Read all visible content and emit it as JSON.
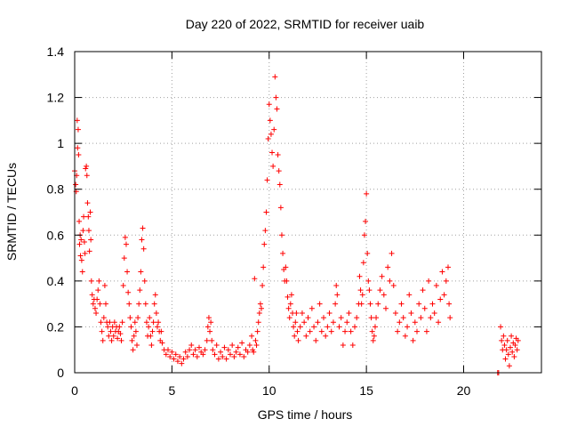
{
  "chart_data": {
    "type": "scatter",
    "title": "Day 220 of 2022, SRMTID for receiver uaib",
    "xlabel": "GPS time / hours",
    "ylabel": "SRMTID / TECUs",
    "xlim": [
      0,
      24
    ],
    "ylim": [
      0,
      1.4
    ],
    "xticks": [
      0,
      5,
      10,
      15,
      20
    ],
    "xtick_labels": [
      "0",
      "5",
      "10",
      "15",
      "20"
    ],
    "yticks": [
      0,
      0.2,
      0.4,
      0.6,
      0.8,
      1.0,
      1.2,
      1.4
    ],
    "ytick_labels": [
      "0",
      "0.2",
      "0.4",
      "0.6",
      "0.8",
      "1",
      "1.2",
      "1.4"
    ],
    "grid": true,
    "marker": "+",
    "color": "#ff0000",
    "series": [
      {
        "name": "SRMTID",
        "points": [
          [
            0.0,
            0.88
          ],
          [
            0.05,
            0.82
          ],
          [
            0.08,
            0.79
          ],
          [
            0.1,
            0.86
          ],
          [
            0.13,
            1.1
          ],
          [
            0.15,
            0.98
          ],
          [
            0.18,
            1.06
          ],
          [
            0.2,
            0.95
          ],
          [
            0.23,
            0.66
          ],
          [
            0.25,
            0.56
          ],
          [
            0.28,
            0.6
          ],
          [
            0.3,
            0.51
          ],
          [
            0.33,
            0.58
          ],
          [
            0.36,
            0.49
          ],
          [
            0.4,
            0.44
          ],
          [
            0.43,
            0.62
          ],
          [
            0.46,
            0.68
          ],
          [
            0.5,
            0.57
          ],
          [
            0.53,
            0.52
          ],
          [
            0.56,
            0.89
          ],
          [
            0.6,
            0.9
          ],
          [
            0.63,
            0.86
          ],
          [
            0.66,
            0.74
          ],
          [
            0.7,
            0.68
          ],
          [
            0.73,
            0.62
          ],
          [
            0.76,
            0.53
          ],
          [
            0.8,
            0.7
          ],
          [
            0.83,
            0.58
          ],
          [
            0.86,
            0.4
          ],
          [
            0.9,
            0.34
          ],
          [
            0.95,
            0.3
          ],
          [
            1.0,
            0.32
          ],
          [
            1.05,
            0.28
          ],
          [
            1.1,
            0.26
          ],
          [
            1.15,
            0.32
          ],
          [
            1.2,
            0.36
          ],
          [
            1.25,
            0.4
          ],
          [
            1.3,
            0.3
          ],
          [
            1.35,
            0.22
          ],
          [
            1.4,
            0.18
          ],
          [
            1.45,
            0.14
          ],
          [
            1.5,
            0.24
          ],
          [
            1.55,
            0.38
          ],
          [
            1.6,
            0.3
          ],
          [
            1.65,
            0.22
          ],
          [
            1.7,
            0.2
          ],
          [
            1.75,
            0.16
          ],
          [
            1.8,
            0.22
          ],
          [
            1.85,
            0.18
          ],
          [
            1.9,
            0.14
          ],
          [
            1.95,
            0.2
          ],
          [
            2.0,
            0.16
          ],
          [
            2.05,
            0.22
          ],
          [
            2.1,
            0.18
          ],
          [
            2.15,
            0.2
          ],
          [
            2.2,
            0.15
          ],
          [
            2.25,
            0.18
          ],
          [
            2.3,
            0.2
          ],
          [
            2.35,
            0.17
          ],
          [
            2.4,
            0.14
          ],
          [
            2.45,
            0.22
          ],
          [
            2.5,
            0.38
          ],
          [
            2.55,
            0.5
          ],
          [
            2.6,
            0.59
          ],
          [
            2.65,
            0.56
          ],
          [
            2.7,
            0.44
          ],
          [
            2.75,
            0.35
          ],
          [
            2.8,
            0.3
          ],
          [
            2.85,
            0.24
          ],
          [
            2.9,
            0.2
          ],
          [
            2.95,
            0.14
          ],
          [
            3.0,
            0.1
          ],
          [
            3.05,
            0.16
          ],
          [
            3.1,
            0.22
          ],
          [
            3.15,
            0.18
          ],
          [
            3.2,
            0.12
          ],
          [
            3.25,
            0.24
          ],
          [
            3.3,
            0.3
          ],
          [
            3.35,
            0.36
          ],
          [
            3.4,
            0.44
          ],
          [
            3.45,
            0.58
          ],
          [
            3.5,
            0.63
          ],
          [
            3.55,
            0.54
          ],
          [
            3.6,
            0.4
          ],
          [
            3.65,
            0.3
          ],
          [
            3.7,
            0.22
          ],
          [
            3.75,
            0.16
          ],
          [
            3.8,
            0.2
          ],
          [
            3.85,
            0.24
          ],
          [
            3.9,
            0.16
          ],
          [
            3.95,
            0.12
          ],
          [
            4.0,
            0.18
          ],
          [
            4.05,
            0.22
          ],
          [
            4.1,
            0.3
          ],
          [
            4.15,
            0.34
          ],
          [
            4.2,
            0.26
          ],
          [
            4.25,
            0.2
          ],
          [
            4.3,
            0.22
          ],
          [
            4.35,
            0.18
          ],
          [
            4.4,
            0.14
          ],
          [
            4.45,
            0.18
          ],
          [
            4.5,
            0.13
          ],
          [
            4.6,
            0.1
          ],
          [
            4.7,
            0.08
          ],
          [
            4.8,
            0.1
          ],
          [
            4.9,
            0.07
          ],
          [
            5.0,
            0.09
          ],
          [
            5.1,
            0.06
          ],
          [
            5.2,
            0.08
          ],
          [
            5.3,
            0.05
          ],
          [
            5.4,
            0.07
          ],
          [
            5.5,
            0.04
          ],
          [
            5.6,
            0.06
          ],
          [
            5.7,
            0.09
          ],
          [
            5.8,
            0.07
          ],
          [
            5.9,
            0.1
          ],
          [
            6.0,
            0.12
          ],
          [
            6.1,
            0.08
          ],
          [
            6.2,
            0.1
          ],
          [
            6.3,
            0.07
          ],
          [
            6.4,
            0.11
          ],
          [
            6.5,
            0.09
          ],
          [
            6.6,
            0.08
          ],
          [
            6.7,
            0.1
          ],
          [
            6.8,
            0.14
          ],
          [
            6.85,
            0.2
          ],
          [
            6.9,
            0.24
          ],
          [
            6.95,
            0.18
          ],
          [
            7.0,
            0.22
          ],
          [
            7.05,
            0.14
          ],
          [
            7.1,
            0.1
          ],
          [
            7.2,
            0.08
          ],
          [
            7.3,
            0.12
          ],
          [
            7.4,
            0.06
          ],
          [
            7.5,
            0.09
          ],
          [
            7.6,
            0.07
          ],
          [
            7.7,
            0.11
          ],
          [
            7.8,
            0.06
          ],
          [
            7.9,
            0.1
          ],
          [
            8.0,
            0.08
          ],
          [
            8.1,
            0.12
          ],
          [
            8.2,
            0.07
          ],
          [
            8.3,
            0.09
          ],
          [
            8.4,
            0.11
          ],
          [
            8.5,
            0.08
          ],
          [
            8.6,
            0.13
          ],
          [
            8.7,
            0.07
          ],
          [
            8.8,
            0.1
          ],
          [
            8.9,
            0.09
          ],
          [
            9.0,
            0.12
          ],
          [
            9.1,
            0.16
          ],
          [
            9.15,
            0.1
          ],
          [
            9.2,
            0.09
          ],
          [
            9.25,
            0.41
          ],
          [
            9.3,
            0.14
          ],
          [
            9.35,
            0.12
          ],
          [
            9.4,
            0.18
          ],
          [
            9.45,
            0.22
          ],
          [
            9.5,
            0.26
          ],
          [
            9.55,
            0.3
          ],
          [
            9.6,
            0.28
          ],
          [
            9.65,
            0.38
          ],
          [
            9.7,
            0.46
          ],
          [
            9.75,
            0.56
          ],
          [
            9.8,
            0.62
          ],
          [
            9.85,
            0.7
          ],
          [
            9.9,
            0.84
          ],
          [
            9.95,
            1.02
          ],
          [
            10.0,
            1.17
          ],
          [
            10.05,
            1.1
          ],
          [
            10.1,
            1.04
          ],
          [
            10.15,
            0.96
          ],
          [
            10.2,
            0.9
          ],
          [
            10.25,
            1.06
          ],
          [
            10.3,
            1.29
          ],
          [
            10.35,
            1.2
          ],
          [
            10.4,
            1.15
          ],
          [
            10.45,
            0.95
          ],
          [
            10.5,
            0.88
          ],
          [
            10.55,
            0.82
          ],
          [
            10.6,
            0.72
          ],
          [
            10.65,
            0.6
          ],
          [
            10.7,
            0.52
          ],
          [
            10.75,
            0.45
          ],
          [
            10.8,
            0.4
          ],
          [
            10.85,
            0.46
          ],
          [
            10.9,
            0.4
          ],
          [
            10.95,
            0.33
          ],
          [
            11.0,
            0.28
          ],
          [
            11.05,
            0.24
          ],
          [
            11.1,
            0.3
          ],
          [
            11.15,
            0.34
          ],
          [
            11.2,
            0.26
          ],
          [
            11.25,
            0.2
          ],
          [
            11.3,
            0.16
          ],
          [
            11.35,
            0.22
          ],
          [
            11.4,
            0.26
          ],
          [
            11.45,
            0.18
          ],
          [
            11.5,
            0.14
          ],
          [
            11.6,
            0.2
          ],
          [
            11.7,
            0.26
          ],
          [
            11.8,
            0.22
          ],
          [
            11.9,
            0.16
          ],
          [
            12.0,
            0.24
          ],
          [
            12.1,
            0.18
          ],
          [
            12.2,
            0.28
          ],
          [
            12.3,
            0.2
          ],
          [
            12.4,
            0.14
          ],
          [
            12.5,
            0.22
          ],
          [
            12.6,
            0.3
          ],
          [
            12.7,
            0.18
          ],
          [
            12.8,
            0.24
          ],
          [
            12.9,
            0.16
          ],
          [
            13.0,
            0.2
          ],
          [
            13.1,
            0.26
          ],
          [
            13.2,
            0.18
          ],
          [
            13.3,
            0.22
          ],
          [
            13.4,
            0.3
          ],
          [
            13.45,
            0.38
          ],
          [
            13.5,
            0.34
          ],
          [
            13.6,
            0.2
          ],
          [
            13.7,
            0.24
          ],
          [
            13.8,
            0.12
          ],
          [
            13.9,
            0.18
          ],
          [
            14.0,
            0.22
          ],
          [
            14.1,
            0.26
          ],
          [
            14.2,
            0.18
          ],
          [
            14.3,
            0.12
          ],
          [
            14.4,
            0.2
          ],
          [
            14.5,
            0.24
          ],
          [
            14.6,
            0.3
          ],
          [
            14.65,
            0.42
          ],
          [
            14.7,
            0.36
          ],
          [
            14.75,
            0.3
          ],
          [
            14.8,
            0.34
          ],
          [
            14.85,
            0.48
          ],
          [
            14.9,
            0.6
          ],
          [
            14.95,
            0.66
          ],
          [
            15.0,
            0.78
          ],
          [
            15.05,
            0.52
          ],
          [
            15.1,
            0.4
          ],
          [
            15.15,
            0.36
          ],
          [
            15.2,
            0.3
          ],
          [
            15.25,
            0.24
          ],
          [
            15.3,
            0.18
          ],
          [
            15.35,
            0.14
          ],
          [
            15.4,
            0.16
          ],
          [
            15.45,
            0.2
          ],
          [
            15.5,
            0.24
          ],
          [
            15.6,
            0.3
          ],
          [
            15.7,
            0.36
          ],
          [
            15.8,
            0.42
          ],
          [
            15.9,
            0.34
          ],
          [
            16.0,
            0.28
          ],
          [
            16.1,
            0.46
          ],
          [
            16.2,
            0.4
          ],
          [
            16.3,
            0.52
          ],
          [
            16.4,
            0.38
          ],
          [
            16.5,
            0.26
          ],
          [
            16.6,
            0.18
          ],
          [
            16.7,
            0.22
          ],
          [
            16.8,
            0.3
          ],
          [
            16.9,
            0.24
          ],
          [
            17.0,
            0.16
          ],
          [
            17.1,
            0.2
          ],
          [
            17.2,
            0.34
          ],
          [
            17.3,
            0.26
          ],
          [
            17.4,
            0.14
          ],
          [
            17.5,
            0.22
          ],
          [
            17.6,
            0.18
          ],
          [
            17.7,
            0.3
          ],
          [
            17.8,
            0.24
          ],
          [
            17.9,
            0.36
          ],
          [
            18.0,
            0.28
          ],
          [
            18.1,
            0.18
          ],
          [
            18.2,
            0.4
          ],
          [
            18.3,
            0.24
          ],
          [
            18.4,
            0.3
          ],
          [
            18.5,
            0.26
          ],
          [
            18.6,
            0.38
          ],
          [
            18.7,
            0.22
          ],
          [
            18.8,
            0.32
          ],
          [
            18.9,
            0.44
          ],
          [
            19.0,
            0.34
          ],
          [
            19.1,
            0.4
          ],
          [
            19.2,
            0.46
          ],
          [
            19.25,
            0.3
          ],
          [
            19.3,
            0.24
          ],
          [
            21.75,
            0.0
          ],
          [
            21.8,
            0.0
          ],
          [
            21.9,
            0.2
          ],
          [
            21.95,
            0.14
          ],
          [
            22.0,
            0.1
          ],
          [
            22.05,
            0.16
          ],
          [
            22.1,
            0.12
          ],
          [
            22.15,
            0.06
          ],
          [
            22.2,
            0.1
          ],
          [
            22.25,
            0.14
          ],
          [
            22.3,
            0.08
          ],
          [
            22.35,
            0.03
          ],
          [
            22.4,
            0.11
          ],
          [
            22.45,
            0.16
          ],
          [
            22.5,
            0.09
          ],
          [
            22.55,
            0.13
          ],
          [
            22.6,
            0.07
          ],
          [
            22.65,
            0.12
          ],
          [
            22.7,
            0.15
          ],
          [
            22.75,
            0.1
          ],
          [
            22.8,
            0.14
          ]
        ]
      }
    ]
  }
}
